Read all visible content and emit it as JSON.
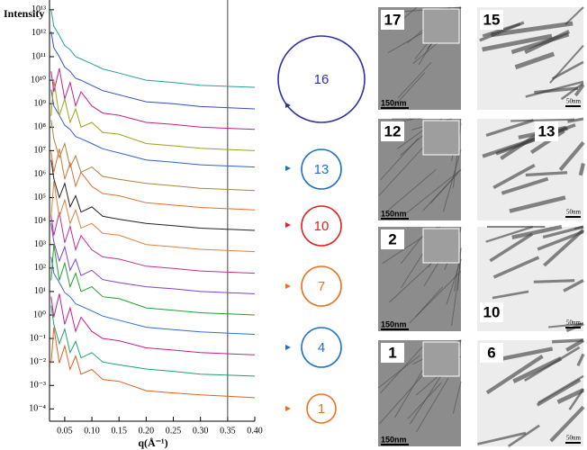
{
  "chart_data": {
    "type": "line",
    "log_y": true,
    "ylabel": "Intensity",
    "xlabel": "q(Å⁻¹)",
    "xlim": [
      0.022,
      0.4
    ],
    "ylim": [
      3e-05,
      26000000000000.0
    ],
    "xticks": [
      0.05,
      {
        "value": 0.1,
        "label": "0.10"
      },
      0.15,
      {
        "value": 0.2,
        "label": "0.20"
      },
      0.25,
      {
        "value": 0.3,
        "label": "0.30"
      },
      0.35,
      {
        "value": 0.4,
        "label": "0.40"
      }
    ],
    "yticks": [
      {
        "value": 10000000000000.0,
        "label": "10¹³"
      },
      {
        "value": 1000000000000.0,
        "label": "10¹²"
      },
      {
        "value": 100000000000.0,
        "label": "10¹¹"
      },
      {
        "value": 10000000000.0,
        "label": "10¹⁰"
      },
      {
        "value": 1000000000.0,
        "label": "10⁹"
      },
      {
        "value": 100000000.0,
        "label": "10⁸"
      },
      {
        "value": 10000000.0,
        "label": "10⁷"
      },
      {
        "value": 1000000.0,
        "label": "10⁶"
      },
      {
        "value": 100000.0,
        "label": "10⁵"
      },
      {
        "value": 10000.0,
        "label": "10⁴"
      },
      {
        "value": 1000.0,
        "label": "10³"
      },
      {
        "value": 100.0,
        "label": "10²"
      },
      {
        "value": 10.0,
        "label": "10¹"
      },
      {
        "value": 1,
        "label": "10⁰"
      },
      {
        "value": 0.1,
        "label": "10⁻¹"
      },
      {
        "value": 0.01,
        "label": "10⁻²"
      },
      {
        "value": 0.001,
        "label": "10⁻³"
      },
      {
        "value": 0.0001,
        "label": "10⁻⁴"
      }
    ],
    "vline": 0.35,
    "x": [
      0.025,
      0.03,
      0.04,
      0.05,
      0.06,
      0.07,
      0.08,
      0.1,
      0.12,
      0.15,
      0.2,
      0.25,
      0.3,
      0.4
    ],
    "series": [
      {
        "color": "#e06020",
        "values": [
          0.009,
          0.3,
          0.009,
          0.048,
          0.0048,
          0.018,
          0.003,
          0.0048,
          0.0018,
          0.0015,
          0.0006,
          0.00048,
          0.0004,
          0.0003
        ]
      },
      {
        "color": "#20a070",
        "values": [
          2.5,
          0.4,
          0.06,
          0.25,
          0.025,
          0.075,
          0.015,
          0.025,
          0.01,
          0.0075,
          0.005,
          0.004,
          0.003,
          0.0025
        ]
      },
      {
        "color": "#c02090",
        "values": [
          6,
          0.8,
          8,
          0.4,
          2,
          0.2,
          0.8,
          0.2,
          0.1,
          0.08,
          0.04,
          0.032,
          0.025,
          0.02
        ]
      },
      {
        "color": "#3070d0",
        "values": [
          300,
          60,
          24,
          9,
          6,
          3,
          2.4,
          1.5,
          0.9,
          0.6,
          0.3,
          0.24,
          0.19,
          0.15
        ]
      },
      {
        "color": "#20a030",
        "values": [
          30,
          1000,
          30,
          160,
          16,
          60,
          10,
          16,
          6,
          5,
          2,
          1.6,
          1.25,
          1
        ]
      },
      {
        "color": "#8040d0",
        "values": [
          8000,
          1300,
          200,
          800,
          80,
          240,
          48,
          80,
          32,
          24,
          16,
          13,
          10,
          8
        ]
      },
      {
        "color": "#c03090",
        "values": [
          18000,
          2400,
          24000,
          1200,
          6000,
          600,
          2400,
          600,
          300,
          240,
          120,
          96,
          75,
          60
        ]
      },
      {
        "color": "#e08040",
        "values": [
          15000,
          500000,
          15000,
          80000,
          8000,
          30000,
          5000,
          8000,
          3000,
          2500,
          1000,
          800,
          630,
          500
        ]
      },
      {
        "color": "#222222",
        "values": [
          4000000.0,
          640000.0,
          100000.0,
          400000.0,
          40000.0,
          120000.0,
          24000.0,
          40000.0,
          16000.0,
          12000.0,
          8000.0,
          6400.0,
          5000.0,
          4000.0
        ]
      },
      {
        "color": "#e07030",
        "values": [
          9000000.0,
          1200000.0,
          12000000.0,
          600000.0,
          3000000.0,
          300000.0,
          1200000.0,
          300000.0,
          150000.0,
          120000.0,
          60000.0,
          48000.0,
          38000.0,
          30000.0
        ]
      },
      {
        "color": "#b08040",
        "values": [
          200000000.0,
          32000000.0,
          5000000.0,
          20000000.0,
          2000000.0,
          6000000.0,
          1200000.0,
          2000000.0,
          800000.0,
          600000.0,
          400000.0,
          320000.0,
          250000.0,
          200000.0
        ]
      },
      {
        "color": "#3060d0",
        "values": [
          4000000000.0,
          800000000.0,
          320000000.0,
          120000000.0,
          80000000.0,
          40000000.0,
          32000000.0,
          20000000.0,
          12000000.0,
          8000000.0,
          4000000.0,
          3200000.0,
          2500000.0,
          2000000.0
        ]
      },
      {
        "color": "#a0a020",
        "values": [
          300000000.0,
          10000000000.0,
          300000000.0,
          1600000000.0,
          160000000.0,
          600000000.0,
          100000000.0,
          160000000.0,
          60000000.0,
          50000000.0,
          20000000.0,
          16000000.0,
          12500000.0,
          10000000.0
        ]
      },
      {
        "color": "#c0208a",
        "values": [
          24000000000.0,
          3200000000.0,
          32000000000.0,
          1600000000.0,
          8000000000.0,
          800000000.0,
          3200000000.0,
          800000000.0,
          400000000.0,
          320000000.0,
          160000000.0,
          130000000.0,
          100000000.0,
          80000000.0
        ]
      },
      {
        "color": "#3050c0",
        "values": [
          1200000000000.0,
          240000000000.0,
          100000000000.0,
          36000000000.0,
          24000000000.0,
          12000000000.0,
          10000000000.0,
          6000000000.0,
          3600000000.0,
          2400000000.0,
          1200000000.0,
          1000000000.0,
          750000000.0,
          600000000.0
        ]
      },
      {
        "color": "#2a9d9d",
        "values": [
          10000000000000.0,
          2000000000000.0,
          800000000000.0,
          300000000000.0,
          200000000000.0,
          100000000000.0,
          80000000000.0,
          50000000000.0,
          30000000000.0,
          20000000000.0,
          10000000000.0,
          8000000000.0,
          6000000000.0,
          5000000000.0
        ]
      }
    ],
    "annotations": [
      {
        "text": "16",
        "color": "#3030a0"
      },
      {
        "text": "13",
        "color": "#2070d0"
      },
      {
        "text": "10",
        "color": "#e02020"
      },
      {
        "text": "7",
        "color": "#f07020"
      },
      {
        "text": "4",
        "color": "#2070d0"
      },
      {
        "text": "1",
        "color": "#f07020"
      }
    ]
  },
  "panels": [
    {
      "label": "17",
      "scale": "150nm"
    },
    {
      "label": "15",
      "scale": "50nm"
    },
    {
      "label": "12",
      "scale": "150nm"
    },
    {
      "label": "13",
      "scale": "50nm"
    },
    {
      "label": "2",
      "scale": "150nm"
    },
    {
      "label": "10",
      "scale": "50nm"
    },
    {
      "label": "1",
      "scale": "150nm"
    },
    {
      "label": "6",
      "scale": "50nm"
    }
  ]
}
